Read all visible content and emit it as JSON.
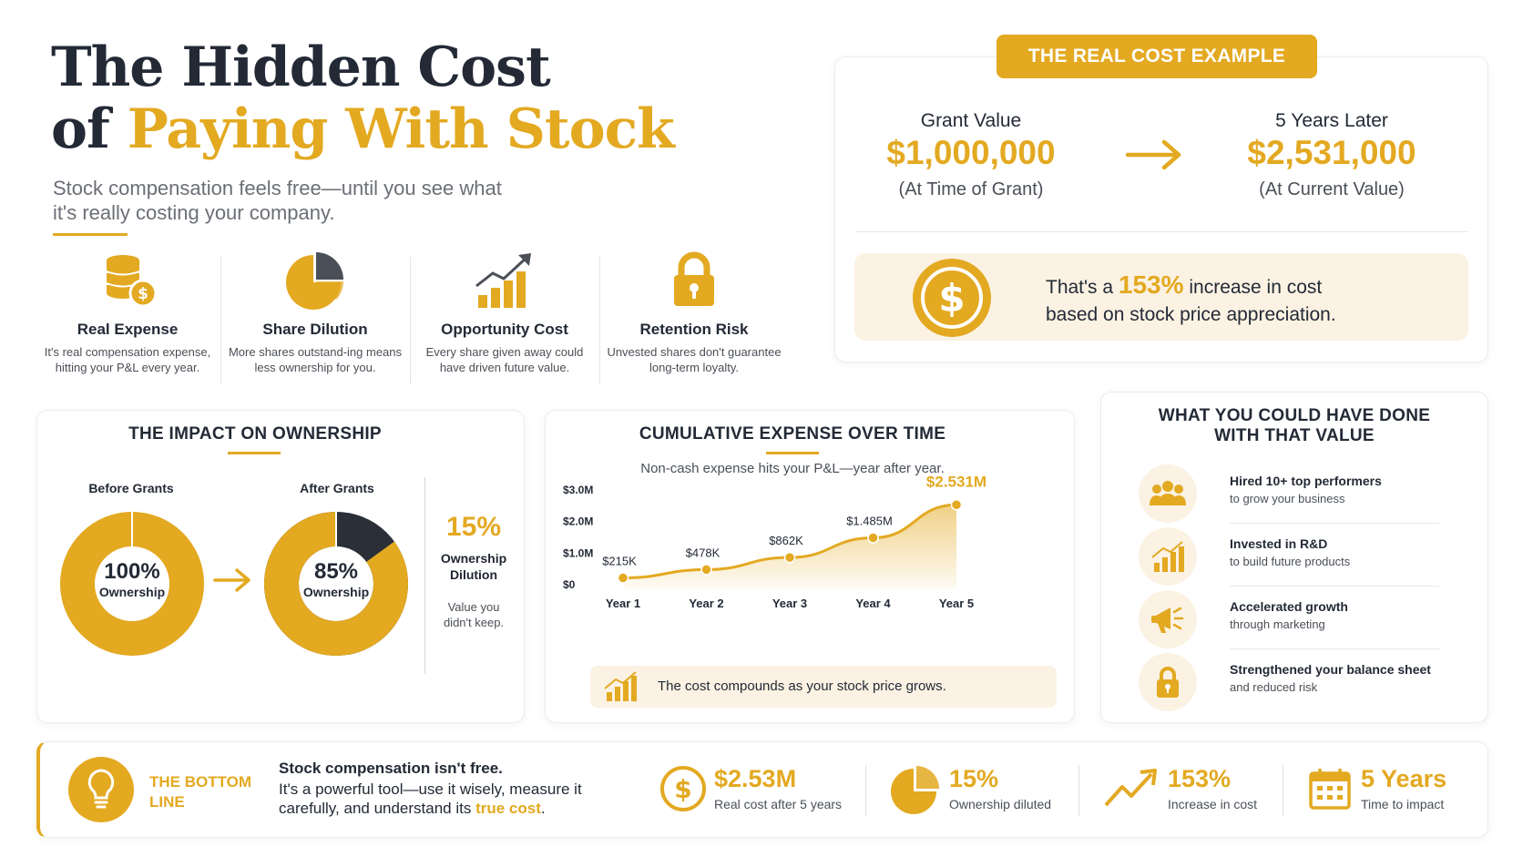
{
  "header": {
    "title_line1": "The Hidden Cost",
    "title_line2_prefix": "of ",
    "title_line2_highlight": "Paying With Stock",
    "subtitle": "Stock compensation feels free—until you see what it's really costing your company."
  },
  "features": [
    {
      "icon": "coins-dollar-icon",
      "title": "Real Expense",
      "desc": "It's real compensation expense, hitting your P&L every year."
    },
    {
      "icon": "pie-chart-icon",
      "title": "Share Dilution",
      "desc": "More shares outstand-ing means less ownership for you."
    },
    {
      "icon": "growth-bars-icon",
      "title": "Opportunity Cost",
      "desc": "Every share given away could have driven future value."
    },
    {
      "icon": "padlock-icon",
      "title": "Retention Risk",
      "desc": "Unvested shares don't guarantee long-term loyalty."
    }
  ],
  "real_cost": {
    "badge": "THE REAL COST EXAMPLE",
    "grant_label": "Grant Value",
    "grant_value": "$1,000,000",
    "grant_sub": "(At Time of Grant)",
    "later_label": "5 Years Later",
    "later_value": "$2,531,000",
    "later_sub": "(At Current Value)",
    "increase_prefix": "That's a ",
    "increase_pct": "153%",
    "increase_suffix": " increase in cost",
    "increase_line2": "based on stock price appreciation."
  },
  "ownership": {
    "heading": "THE IMPACT ON OWNERSHIP",
    "before_label": "Before Grants",
    "before_pct": "100%",
    "before_word": "Ownership",
    "before_fraction": 1.0,
    "after_label": "After Grants",
    "after_pct": "85%",
    "after_word": "Ownership",
    "after_fraction": 0.85,
    "dilution_pct": "15%",
    "dilution_label_1": "Ownership",
    "dilution_label_2": "Dilution",
    "dilution_note_1": "Value you",
    "dilution_note_2": "didn't keep."
  },
  "chart_data": {
    "type": "area",
    "title": "CUMULATIVE EXPENSE OVER TIME",
    "subtitle": "Non-cash expense hits your P&L—year after year.",
    "categories": [
      "Year 1",
      "Year 2",
      "Year 3",
      "Year 4",
      "Year 5"
    ],
    "values": [
      0.215,
      0.478,
      0.862,
      1.485,
      2.531
    ],
    "data_labels": [
      "$215K",
      "$478K",
      "$862K",
      "$1.485M",
      "$2.531M"
    ],
    "y_ticks": [
      0,
      1,
      2,
      3
    ],
    "y_tick_labels": [
      "$0",
      "$1.0M",
      "$2.0M",
      "$3.0M"
    ],
    "ylim": [
      0,
      3
    ],
    "grid": false,
    "color": "#E3A921",
    "footnote": "The cost compounds as your stock price grows."
  },
  "could_have": {
    "heading_1": "WHAT YOU COULD HAVE DONE",
    "heading_2": "WITH THAT VALUE",
    "items": [
      {
        "icon": "people-icon",
        "title": "Hired 10+ top performers",
        "desc": "to grow your business"
      },
      {
        "icon": "growth-chart-icon",
        "title": "Invested in R&D",
        "desc": "to build future products"
      },
      {
        "icon": "megaphone-icon",
        "title": "Accelerated growth",
        "desc": "through marketing"
      },
      {
        "icon": "padlock-icon",
        "title": "Strengthened your balance sheet",
        "desc": "and reduced risk"
      }
    ]
  },
  "bottom": {
    "label_1": "THE BOTTOM",
    "label_2": "LINE",
    "headline": "Stock compensation isn't free.",
    "body": "It's a powerful tool—use it wisely, measure it carefully, and understand its ",
    "body_highlight": "true cost",
    "body_end": ".",
    "stats": [
      {
        "icon": "dollar-circle-icon",
        "value": "$2.53M",
        "label": "Real cost after 5 years"
      },
      {
        "icon": "pie-icon",
        "value": "15%",
        "label": "Ownership diluted"
      },
      {
        "icon": "trend-up-icon",
        "value": "153%",
        "label": "Increase in cost"
      },
      {
        "icon": "calendar-icon",
        "value": "5 Years",
        "label": "Time to impact"
      }
    ]
  },
  "colors": {
    "accent": "#E3A921",
    "dark": "#232a36",
    "cream": "#fbf2e3"
  }
}
